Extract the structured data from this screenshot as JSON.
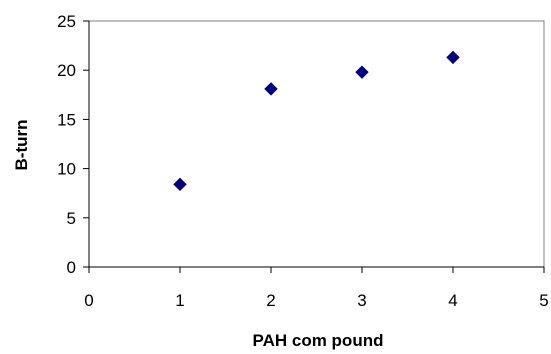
{
  "chart_data": {
    "type": "scatter",
    "title": "",
    "xlabel": "PAH com pound",
    "ylabel": "B-turn",
    "xlim": [
      0,
      5
    ],
    "ylim": [
      0,
      25
    ],
    "x_ticks": [
      "0",
      "1",
      "2",
      "3",
      "4",
      "5"
    ],
    "y_ticks": [
      "0",
      "5",
      "10",
      "15",
      "20",
      "25"
    ],
    "grid": false,
    "legend": "none",
    "series": [
      {
        "marker": "diamond",
        "color": "#000080",
        "points": [
          {
            "x": 1,
            "y": 8.4
          },
          {
            "x": 2,
            "y": 18.1
          },
          {
            "x": 3,
            "y": 19.8
          },
          {
            "x": 4,
            "y": 21.3
          }
        ]
      }
    ]
  }
}
